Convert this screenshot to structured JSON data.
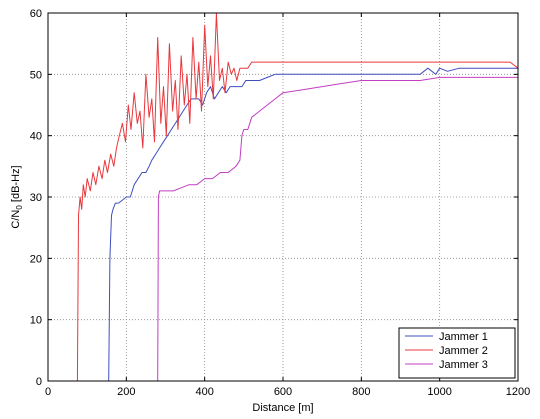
{
  "chart_data": {
    "type": "line",
    "xlabel": "Distance [m]",
    "ylabel_main": "C/N",
    "ylabel_sub": "0",
    "ylabel_unit": " [dB-Hz]",
    "xlim": [
      0,
      1200
    ],
    "ylim": [
      0,
      60
    ],
    "xticks": [
      0,
      200,
      400,
      600,
      800,
      1000,
      1200
    ],
    "yticks": [
      0,
      10,
      20,
      30,
      40,
      50,
      60
    ],
    "grid": true,
    "legend_position": "bottom-right",
    "series": [
      {
        "name": "Jammer 1",
        "color": "#3f4fc0",
        "x": [
          155,
          158,
          162,
          166,
          172,
          180,
          190,
          200,
          210,
          220,
          230,
          240,
          250,
          258,
          265,
          275,
          285,
          295,
          305,
          315,
          325,
          335,
          345,
          355,
          365,
          375,
          385,
          395,
          405,
          415,
          425,
          435,
          445,
          455,
          465,
          475,
          485,
          495,
          505,
          520,
          540,
          560,
          580,
          600,
          650,
          700,
          800,
          900,
          950,
          970,
          990,
          1000,
          1020,
          1050,
          1100,
          1150,
          1200
        ],
        "y": [
          0,
          20,
          27,
          28,
          29,
          29,
          29.5,
          30,
          30,
          32,
          33,
          34,
          34,
          35,
          36,
          37,
          38,
          39,
          40,
          41,
          42,
          43,
          44,
          45,
          46,
          46,
          46,
          45,
          47,
          48,
          46,
          47,
          48,
          47,
          48,
          48,
          48,
          48,
          49,
          49,
          49,
          49.5,
          50,
          50,
          50,
          50,
          50,
          50,
          50,
          51,
          50,
          51,
          50.5,
          51,
          51,
          51,
          51
        ]
      },
      {
        "name": "Jammer 2",
        "color": "#e8383d",
        "x": [
          75,
          78,
          82,
          86,
          90,
          95,
          100,
          108,
          115,
          122,
          130,
          138,
          145,
          152,
          160,
          168,
          175,
          182,
          190,
          198,
          205,
          212,
          220,
          228,
          235,
          242,
          250,
          258,
          265,
          272,
          280,
          288,
          295,
          302,
          310,
          318,
          325,
          332,
          340,
          348,
          355,
          362,
          370,
          378,
          385,
          392,
          400,
          408,
          415,
          422,
          430,
          438,
          445,
          452,
          460,
          468,
          475,
          482,
          490,
          500,
          510,
          520,
          540,
          560,
          600,
          700,
          800,
          900,
          1000,
          1100,
          1180,
          1200
        ],
        "y": [
          0,
          27,
          30,
          28,
          32,
          30,
          33,
          31,
          34,
          32,
          35,
          33,
          36,
          34,
          37,
          35,
          38,
          40,
          42,
          39,
          45,
          41,
          47,
          42,
          44,
          38,
          50,
          43,
          46,
          39,
          56,
          42,
          48,
          40,
          55,
          44,
          49,
          41,
          53,
          45,
          50,
          42,
          56,
          46,
          52,
          44,
          58,
          48,
          53,
          46,
          60,
          49,
          51,
          47,
          52,
          50,
          51,
          49,
          51,
          51,
          51,
          52,
          52,
          52,
          52,
          52,
          52,
          52,
          52,
          52,
          52,
          51
        ]
      },
      {
        "name": "Jammer 3",
        "color": "#c23fc2",
        "x": [
          280,
          282,
          285,
          290,
          300,
          320,
          340,
          360,
          380,
          400,
          420,
          440,
          460,
          480,
          490,
          495,
          500,
          510,
          520,
          540,
          560,
          580,
          600,
          650,
          700,
          750,
          800,
          850,
          900,
          950,
          1000,
          1100,
          1200
        ],
        "y": [
          0,
          30,
          31,
          31,
          31,
          31,
          31.5,
          32,
          32,
          33,
          33,
          34,
          34,
          35,
          36,
          40,
          41,
          41,
          43,
          44,
          45,
          46,
          47,
          47.5,
          48,
          48.5,
          49,
          49,
          49,
          49,
          49.5,
          49.5,
          49.5
        ]
      }
    ]
  }
}
